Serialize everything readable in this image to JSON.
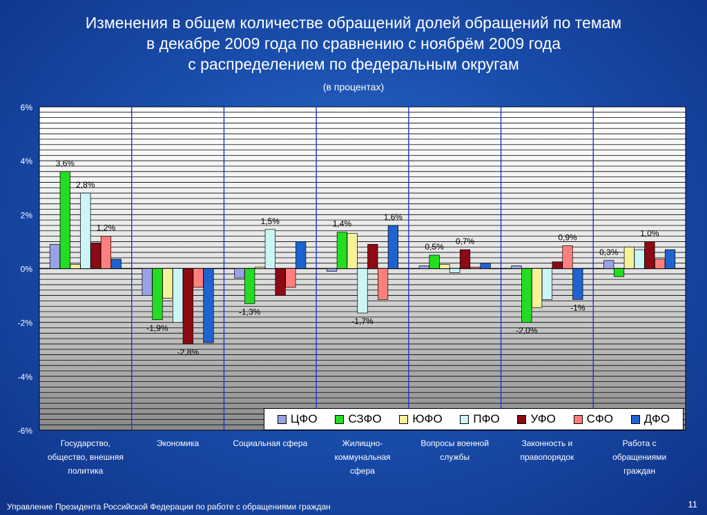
{
  "slide": {
    "title_line1": "Изменения в общем количестве обращений долей обращений по темам",
    "title_line2": "в декабре 2009 года по сравнению с ноябрём 2009 года",
    "title_line3": "с распределением по федеральным округам",
    "subtitle": "(в процентах)",
    "footer": "Управление Президента Российской Федерации по работе с обращениями граждан",
    "page_number": "11"
  },
  "chart_data": {
    "type": "bar",
    "ylim": [
      -6,
      6
    ],
    "yticks": [
      -6,
      -4,
      -2,
      0,
      2,
      4,
      6
    ],
    "ytick_labels": [
      "-6%",
      "-4%",
      "-2%",
      "0%",
      "2%",
      "4%",
      "6%"
    ],
    "grid": true,
    "legend_position": "bottom-right",
    "categories": [
      [
        "Государство,",
        "общество, внешняя",
        "политика"
      ],
      [
        "Экономика"
      ],
      [
        "Социальная сфера"
      ],
      [
        "Жилищно-",
        "коммунальная",
        "сфера"
      ],
      [
        "Вопросы военной",
        "службы"
      ],
      [
        "Законность и",
        "правопорядок"
      ],
      [
        "Работа с",
        "обращениями",
        "граждан"
      ]
    ],
    "series": [
      {
        "name": "ЦФО",
        "color": "#9aa2e6",
        "values": [
          0.9,
          -1.0,
          -0.35,
          -0.1,
          0.1,
          0.1,
          0.3
        ]
      },
      {
        "name": "СЗФО",
        "color": "#22dd22",
        "values": [
          3.6,
          -1.9,
          -1.3,
          1.35,
          0.5,
          -2.0,
          -0.3
        ]
      },
      {
        "name": "ЮФО",
        "color": "#f6f29a",
        "values": [
          0.15,
          -1.1,
          0.05,
          1.3,
          0.15,
          -1.45,
          0.8
        ]
      },
      {
        "name": "ПФО",
        "color": "#ccf6f6",
        "values": [
          2.8,
          -2.0,
          1.45,
          -1.65,
          -0.15,
          -1.15,
          0.7
        ]
      },
      {
        "name": "УФО",
        "color": "#8b0a14",
        "values": [
          0.95,
          -2.8,
          -1.0,
          0.9,
          0.7,
          0.25,
          1.0
        ]
      },
      {
        "name": "СФО",
        "color": "#ff7f7f",
        "values": [
          1.2,
          -0.7,
          -0.7,
          -1.15,
          0.05,
          0.85,
          0.35
        ]
      },
      {
        "name": "ДФО",
        "color": "#1e63d0",
        "values": [
          0.35,
          -2.75,
          1.0,
          1.6,
          0.2,
          -1.15,
          0.7
        ]
      }
    ],
    "data_labels": [
      {
        "category": 0,
        "series": 1,
        "text": "3,6%"
      },
      {
        "category": 0,
        "series": 3,
        "text": "2,8%"
      },
      {
        "category": 0,
        "series": 5,
        "text": "1,2%"
      },
      {
        "category": 1,
        "series": 1,
        "text": "-1,9%"
      },
      {
        "category": 1,
        "series": 4,
        "text": "-2,8%"
      },
      {
        "category": 2,
        "series": 3,
        "text": "1,5%"
      },
      {
        "category": 2,
        "series": 1,
        "text": "-1,3%"
      },
      {
        "category": 3,
        "series": 1,
        "text": "1,4%"
      },
      {
        "category": 3,
        "series": 6,
        "text": "1,6%"
      },
      {
        "category": 3,
        "series": 3,
        "text": "-1,7%"
      },
      {
        "category": 4,
        "series": 1,
        "text": "0,5%"
      },
      {
        "category": 4,
        "series": 4,
        "text": "0,7%"
      },
      {
        "category": 5,
        "series": 1,
        "text": "-2,0%"
      },
      {
        "category": 5,
        "series": 5,
        "text": "0,9%"
      },
      {
        "category": 5,
        "series": 6,
        "text": "-1%"
      },
      {
        "category": 6,
        "series": 0,
        "text": "0,3%"
      },
      {
        "category": 6,
        "series": 4,
        "text": "1,0%"
      }
    ]
  }
}
